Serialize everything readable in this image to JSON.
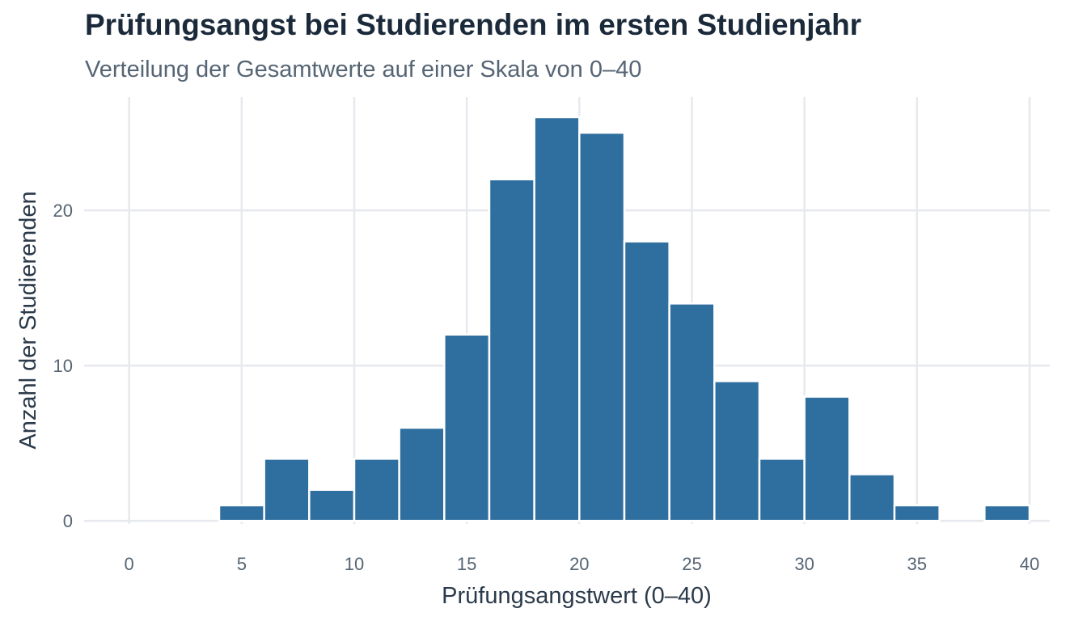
{
  "chart_data": {
    "type": "bar",
    "title": "Prüfungsangst bei Studierenden im ersten Studienjahr",
    "subtitle": "Verteilung der Gesamtwerte auf einer Skala von 0–40",
    "xlabel": "Prüfungsangstwert (0–40)",
    "ylabel": "Anzahl der Studierenden",
    "bin_width": 2,
    "bins": [
      {
        "x0": 4,
        "x1": 6,
        "count": 1
      },
      {
        "x0": 6,
        "x1": 8,
        "count": 4
      },
      {
        "x0": 8,
        "x1": 10,
        "count": 2
      },
      {
        "x0": 10,
        "x1": 12,
        "count": 4
      },
      {
        "x0": 12,
        "x1": 14,
        "count": 6
      },
      {
        "x0": 14,
        "x1": 16,
        "count": 12
      },
      {
        "x0": 16,
        "x1": 18,
        "count": 22
      },
      {
        "x0": 18,
        "x1": 20,
        "count": 26
      },
      {
        "x0": 20,
        "x1": 22,
        "count": 25
      },
      {
        "x0": 22,
        "x1": 24,
        "count": 18
      },
      {
        "x0": 24,
        "x1": 26,
        "count": 14
      },
      {
        "x0": 26,
        "x1": 28,
        "count": 9
      },
      {
        "x0": 28,
        "x1": 30,
        "count": 4
      },
      {
        "x0": 30,
        "x1": 32,
        "count": 8
      },
      {
        "x0": 32,
        "x1": 34,
        "count": 3
      },
      {
        "x0": 34,
        "x1": 36,
        "count": 1
      },
      {
        "x0": 36,
        "x1": 38,
        "count": 0
      },
      {
        "x0": 38,
        "x1": 40,
        "count": 1
      }
    ],
    "xticks": [
      0,
      5,
      10,
      15,
      20,
      25,
      30,
      35,
      40
    ],
    "yticks": [
      0,
      10,
      20
    ],
    "xlim": [
      -2,
      40.9
    ],
    "ylim": [
      -0.2,
      27.3
    ],
    "grid": true,
    "bar_color": "#2f6f9f"
  }
}
